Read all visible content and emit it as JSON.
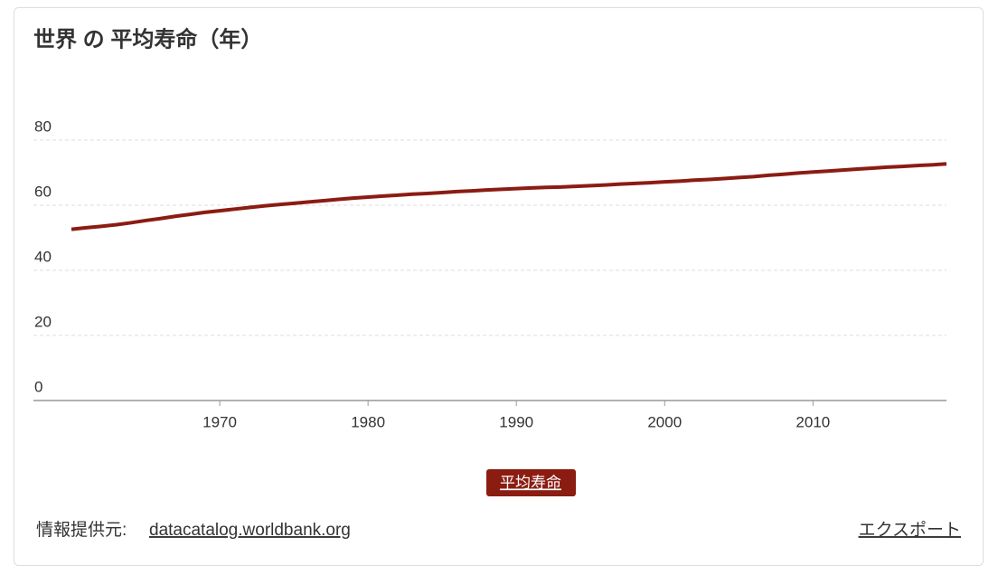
{
  "chart_data": {
    "type": "line",
    "title": "世界 の 平均寿命（年）",
    "x": [
      1960,
      1961,
      1962,
      1963,
      1964,
      1965,
      1966,
      1967,
      1968,
      1969,
      1970,
      1971,
      1972,
      1973,
      1974,
      1975,
      1976,
      1977,
      1978,
      1979,
      1980,
      1981,
      1982,
      1983,
      1984,
      1985,
      1986,
      1987,
      1988,
      1989,
      1990,
      1991,
      1992,
      1993,
      1994,
      1995,
      1996,
      1997,
      1998,
      1999,
      2000,
      2001,
      2002,
      2003,
      2004,
      2005,
      2006,
      2007,
      2008,
      2009,
      2010,
      2011,
      2012,
      2013,
      2014,
      2015,
      2016,
      2017,
      2018,
      2019
    ],
    "series": [
      {
        "name": "平均寿命",
        "color": "#8b1c12",
        "values": [
          52.6,
          53.1,
          53.5,
          54.0,
          54.6,
          55.3,
          55.9,
          56.6,
          57.2,
          57.8,
          58.3,
          58.8,
          59.3,
          59.8,
          60.2,
          60.6,
          61.0,
          61.4,
          61.8,
          62.2,
          62.5,
          62.8,
          63.1,
          63.4,
          63.6,
          63.9,
          64.2,
          64.4,
          64.7,
          64.9,
          65.1,
          65.3,
          65.5,
          65.6,
          65.8,
          66.0,
          66.2,
          66.5,
          66.7,
          66.9,
          67.2,
          67.4,
          67.7,
          67.9,
          68.2,
          68.5,
          68.8,
          69.2,
          69.5,
          69.9,
          70.2,
          70.5,
          70.8,
          71.1,
          71.4,
          71.7,
          71.9,
          72.2,
          72.4,
          72.7
        ]
      }
    ],
    "xlim": [
      1960,
      2019
    ],
    "xticks": [
      1970,
      1980,
      1990,
      2000,
      2010
    ],
    "ylim": [
      0,
      80
    ],
    "yticks": [
      0,
      20,
      40,
      60,
      80
    ],
    "grid": true
  },
  "footer": {
    "source_label": "情報提供元:",
    "source_link": "datacatalog.worldbank.org",
    "export": "エクスポート"
  }
}
